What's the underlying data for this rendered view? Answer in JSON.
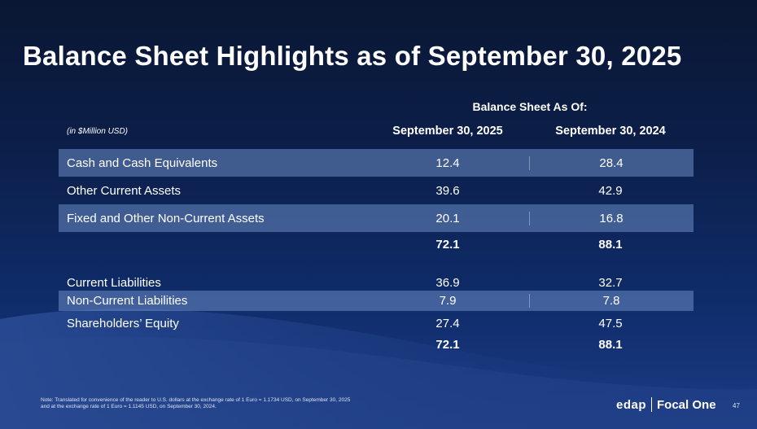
{
  "slide": {
    "title": "Balance Sheet Highlights as of September 30, 2025",
    "group_header": "Balance Sheet As Of:",
    "unit_note": "(in $Million USD)",
    "columns": [
      "September 30, 2025",
      "September 30, 2024"
    ]
  },
  "rows": {
    "cash": {
      "label": "Cash and Cash Equivalents",
      "v2025": "12.4",
      "v2024": "28.4"
    },
    "other_current": {
      "label": "Other Current Assets",
      "v2025": "39.6",
      "v2024": "42.9"
    },
    "fixed": {
      "label": "Fixed and Other Non-Current Assets",
      "v2025": "20.1",
      "v2024": "16.8"
    },
    "total_assets": {
      "v2025": "72.1",
      "v2024": "88.1"
    },
    "current_liab": {
      "label": "Current Liabilities",
      "v2025": "36.9",
      "v2024": "32.7"
    },
    "noncurrent_liab": {
      "label": "Non-Current Liabilities",
      "v2025": "7.9",
      "v2024": "7.8"
    },
    "equity": {
      "label": "Shareholders’ Equity",
      "v2025": "27.4",
      "v2024": "47.5"
    },
    "total_liab_equity": {
      "v2025": "72.1",
      "v2024": "88.1"
    }
  },
  "footer": {
    "note_line1": "Note: Translated for convenience of the reader to U.S. dollars at the exchange rate of 1 Euro = 1.1734 USD, on September 30, 2025",
    "note_line2": "and at the exchange rate of 1 Euro = 1.1145 USD, on September 30, 2024.",
    "logo_left": "edap",
    "logo_right": "Focal One",
    "page_number": "47"
  },
  "colors": {
    "background_top": "#0a1733",
    "background_bottom": "#1b3c86",
    "band": "#6c8cc4"
  }
}
